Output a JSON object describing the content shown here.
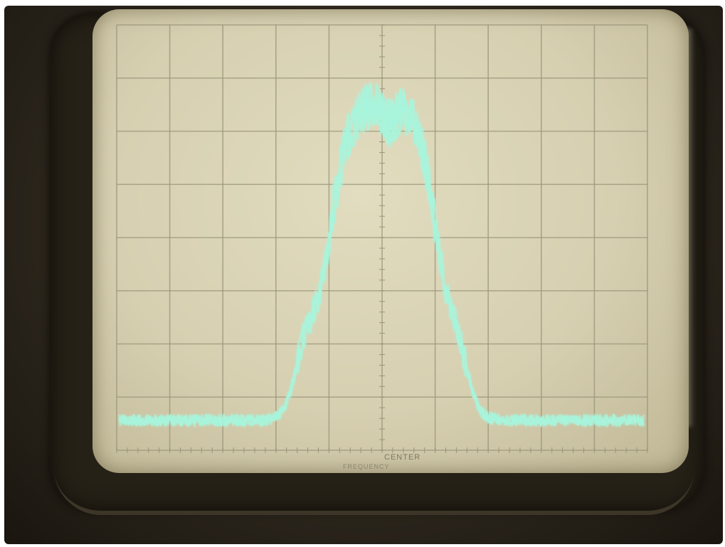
{
  "center_label": "CENTER",
  "frequency_label": "FREQUENCY",
  "colors": {
    "trace": "#a8f5dc",
    "grid": "#9a947a",
    "screen": "#d8d1b3"
  }
}
